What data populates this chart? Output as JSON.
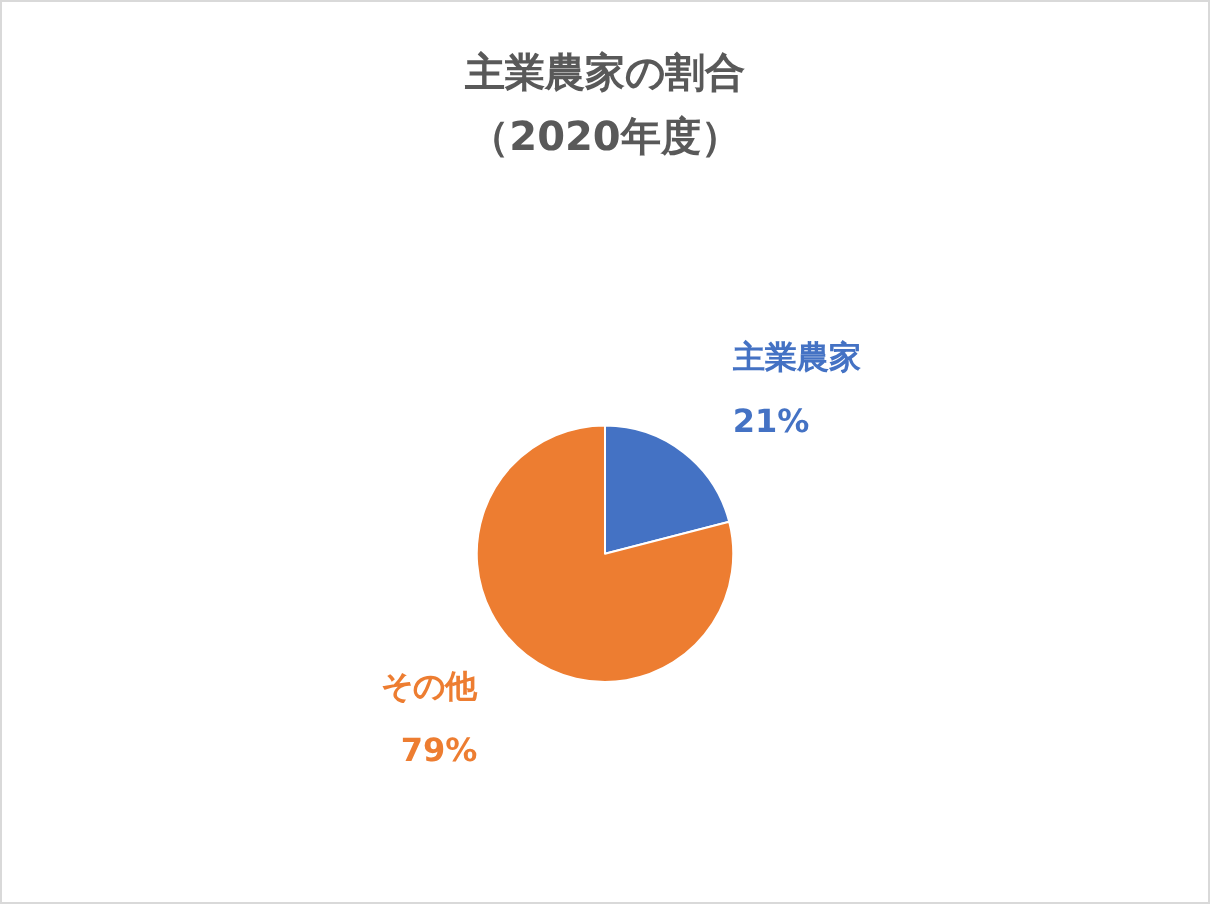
{
  "chart_data": {
    "type": "pie",
    "title": "主業農家の割合",
    "subtitle": "（2020年度）",
    "categories": [
      "主業農家",
      "その他"
    ],
    "values": [
      21,
      79
    ],
    "colors": [
      "#4472c4",
      "#ed7d31"
    ],
    "value_labels": [
      "21%",
      "79%"
    ],
    "legend": false
  }
}
